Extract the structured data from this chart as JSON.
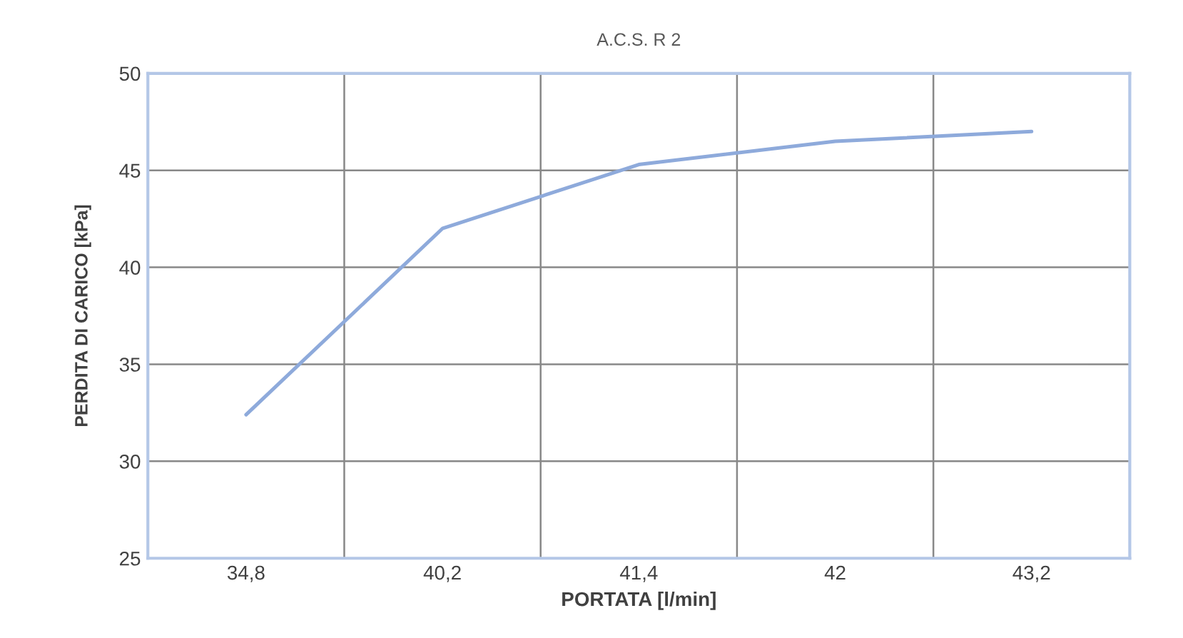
{
  "chart_data": {
    "type": "line",
    "title": "A.C.S. R 2",
    "xlabel": "PORTATA [l/min]",
    "ylabel": "PERDITA DI CARICO [kPa]",
    "categories": [
      "34,8",
      "40,2",
      "41,4",
      "42",
      "43,2"
    ],
    "series": [
      {
        "color": "#8eaadb",
        "values": [
          32.4,
          42.0,
          45.3,
          46.5,
          47.0
        ]
      }
    ],
    "ylim": [
      25,
      50
    ],
    "yticks": [
      25,
      30,
      35,
      40,
      45,
      50
    ],
    "grid": true,
    "marker": "none",
    "line_style": "solid",
    "legend": false
  }
}
